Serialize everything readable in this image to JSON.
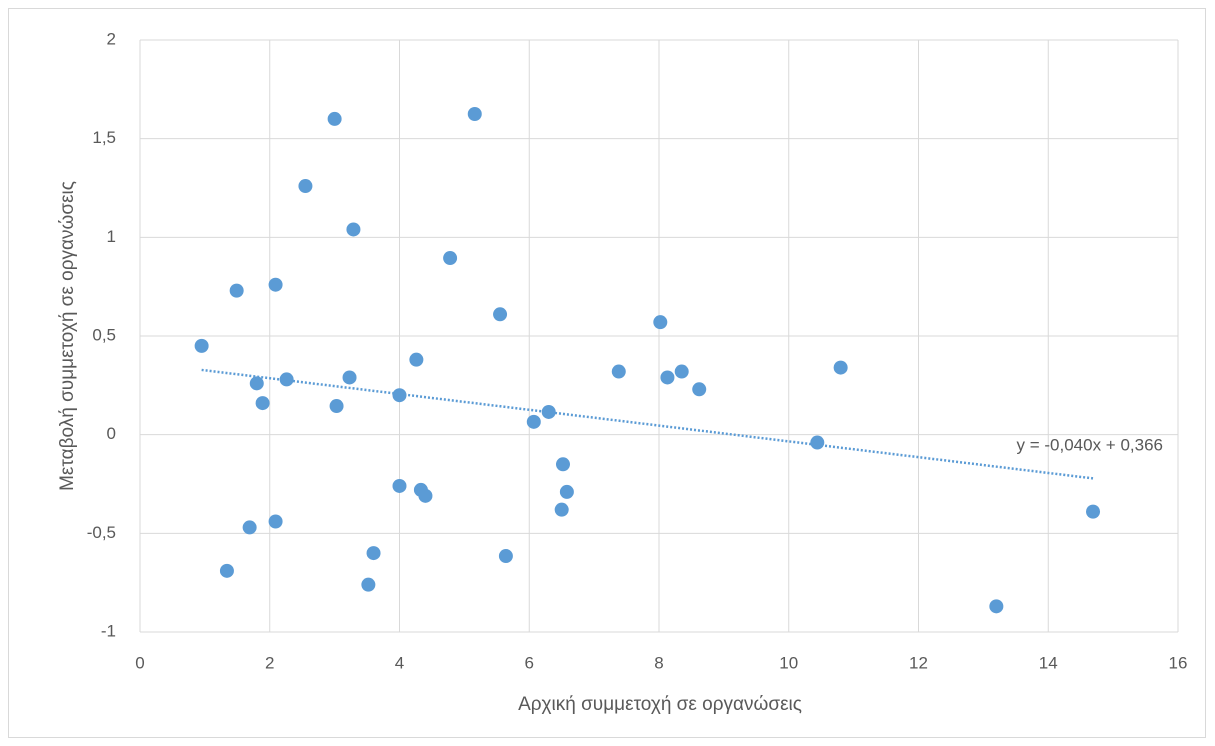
{
  "chart_data": {
    "type": "scatter",
    "x_label": "Αρχική συμμετοχή σε οργανώσεις",
    "y_label": "Μεταβολή συμμετοχή σε οργανώσεις",
    "color": "#5b9bd5",
    "grid": true,
    "x": [
      0.95,
      1.34,
      1.49,
      1.69,
      1.8,
      1.89,
      2.09,
      2.09,
      2.26,
      2.55,
      3.0,
      3.03,
      3.23,
      3.29,
      3.52,
      3.6,
      4.0,
      4.0,
      4.26,
      4.33,
      4.4,
      4.78,
      5.16,
      5.55,
      5.64,
      6.07,
      6.3,
      6.52,
      6.5,
      6.58,
      7.38,
      8.02,
      8.13,
      8.35,
      8.62,
      10.44,
      10.8,
      13.2,
      14.69
    ],
    "values": [
      0.45,
      -0.69,
      0.73,
      -0.47,
      0.26,
      0.16,
      0.76,
      -0.44,
      0.28,
      1.26,
      1.6,
      0.145,
      0.29,
      1.04,
      -0.76,
      -0.6,
      0.2,
      -0.26,
      0.38,
      -0.28,
      -0.31,
      0.895,
      1.625,
      0.61,
      -0.615,
      0.065,
      0.115,
      -0.15,
      -0.38,
      -0.29,
      0.32,
      0.57,
      0.29,
      0.32,
      0.23,
      -0.04,
      0.34,
      -0.87,
      -0.39
    ],
    "trendline": {
      "slope": -0.04,
      "intercept": 0.366,
      "label": "y = -0,040x + 0,366"
    },
    "xlim": [
      0,
      16
    ],
    "xticks": [
      0,
      2,
      4,
      6,
      8,
      10,
      12,
      14,
      16
    ],
    "ylim": [
      -1,
      2
    ],
    "yticks": [
      -1,
      {
        "value": -0.5,
        "label": "-0,5"
      },
      0,
      {
        "value": 0.5,
        "label": "0,5"
      },
      1,
      {
        "value": 1.5,
        "label": "1,5"
      },
      2
    ]
  }
}
